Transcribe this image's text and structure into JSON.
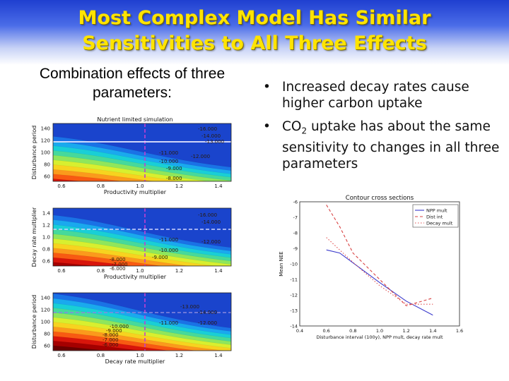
{
  "slide": {
    "title_line1": "Most Complex Model Has Similar",
    "title_line2": "Sensitivities to All Three Effects",
    "caption_line1": "Combination effects of three",
    "caption_line2": "parameters:",
    "bullets": [
      {
        "text": "Increased decay rates cause higher carbon uptake"
      },
      {
        "pre": "CO",
        "sub": "2",
        "post": " uptake has about the same sensitivity to changes in all three parameters"
      }
    ],
    "colors": {
      "title": "#ffe400",
      "background_top": "#1f3fd0"
    }
  },
  "contour_panels": [
    {
      "title": "Nutrient limited simulation",
      "ylabel": "Disturbance period",
      "xlabel": "Productivity multiplier",
      "yticks": [
        "140",
        "120",
        "100",
        "80",
        "60"
      ],
      "xticks": [
        "0.6",
        "0.8",
        "1.0",
        "1.2",
        "1.4"
      ],
      "labels": [
        "-16.000",
        "-14.000",
        "-13.000",
        "-11.000",
        "-12.000",
        "-10.000",
        "-9.000",
        "-8.000"
      ]
    },
    {
      "title": "",
      "ylabel": "Decay rate multiplier",
      "xlabel": "Productivity multiplier",
      "yticks": [
        "1.4",
        "1.2",
        "1.0",
        "0.8",
        "0.6"
      ],
      "xticks": [
        "0.6",
        "0.8",
        "1.0",
        "1.2",
        "1.4"
      ],
      "labels": [
        "-16.000",
        "-14.000",
        "-11.000",
        "-12.000",
        "-10.000",
        "-9.000",
        "-8.000",
        "-7.000",
        "-6.000"
      ]
    },
    {
      "title": "",
      "ylabel": "Disturbance period",
      "xlabel": "Decay rate multiplier",
      "yticks": [
        "140",
        "120",
        "100",
        "80",
        "60"
      ],
      "xticks": [
        "0.6",
        "0.8",
        "1.0",
        "1.2",
        "1.4"
      ],
      "labels": [
        "-13.000",
        "-14.000",
        "-12.000",
        "-11.000",
        "-10.000",
        "-9.000",
        "-8.000",
        "-7.000",
        "-6.000"
      ]
    }
  ],
  "chart_data": {
    "type": "line",
    "title": "Contour cross sections",
    "xlabel": "Disturbance interval (100y), NPP mult, decay rate mult",
    "ylabel": "Mean NEE",
    "xlim": [
      0.4,
      1.6
    ],
    "ylim": [
      -14,
      -6
    ],
    "xticks": [
      "0.4",
      "0.6",
      "0.8",
      "1.0",
      "1.2",
      "1.4",
      "1.6"
    ],
    "yticks": [
      "-6",
      "-7",
      "-8",
      "-9",
      "-10",
      "-11",
      "-12",
      "-13",
      "-14"
    ],
    "legend_position": "top-right",
    "series": [
      {
        "name": "NPP mult",
        "color": "#3a3acc",
        "dash": "solid",
        "x": [
          0.6,
          0.7,
          1.0,
          1.2,
          1.4
        ],
        "y": [
          -9.1,
          -9.3,
          -11.2,
          -12.4,
          -13.3
        ]
      },
      {
        "name": "Dist int",
        "color": "#d84040",
        "dash": "4,3",
        "x": [
          0.6,
          0.7,
          0.8,
          1.0,
          1.2,
          1.4
        ],
        "y": [
          -6.2,
          -7.6,
          -9.3,
          -11.0,
          -12.7,
          -12.2
        ]
      },
      {
        "name": "Decay mult",
        "color": "#e05050",
        "dash": "1.5,2.5",
        "x": [
          0.6,
          0.8,
          1.0,
          1.2,
          1.4
        ],
        "y": [
          -8.3,
          -9.9,
          -11.4,
          -12.6,
          -12.6
        ]
      }
    ]
  }
}
